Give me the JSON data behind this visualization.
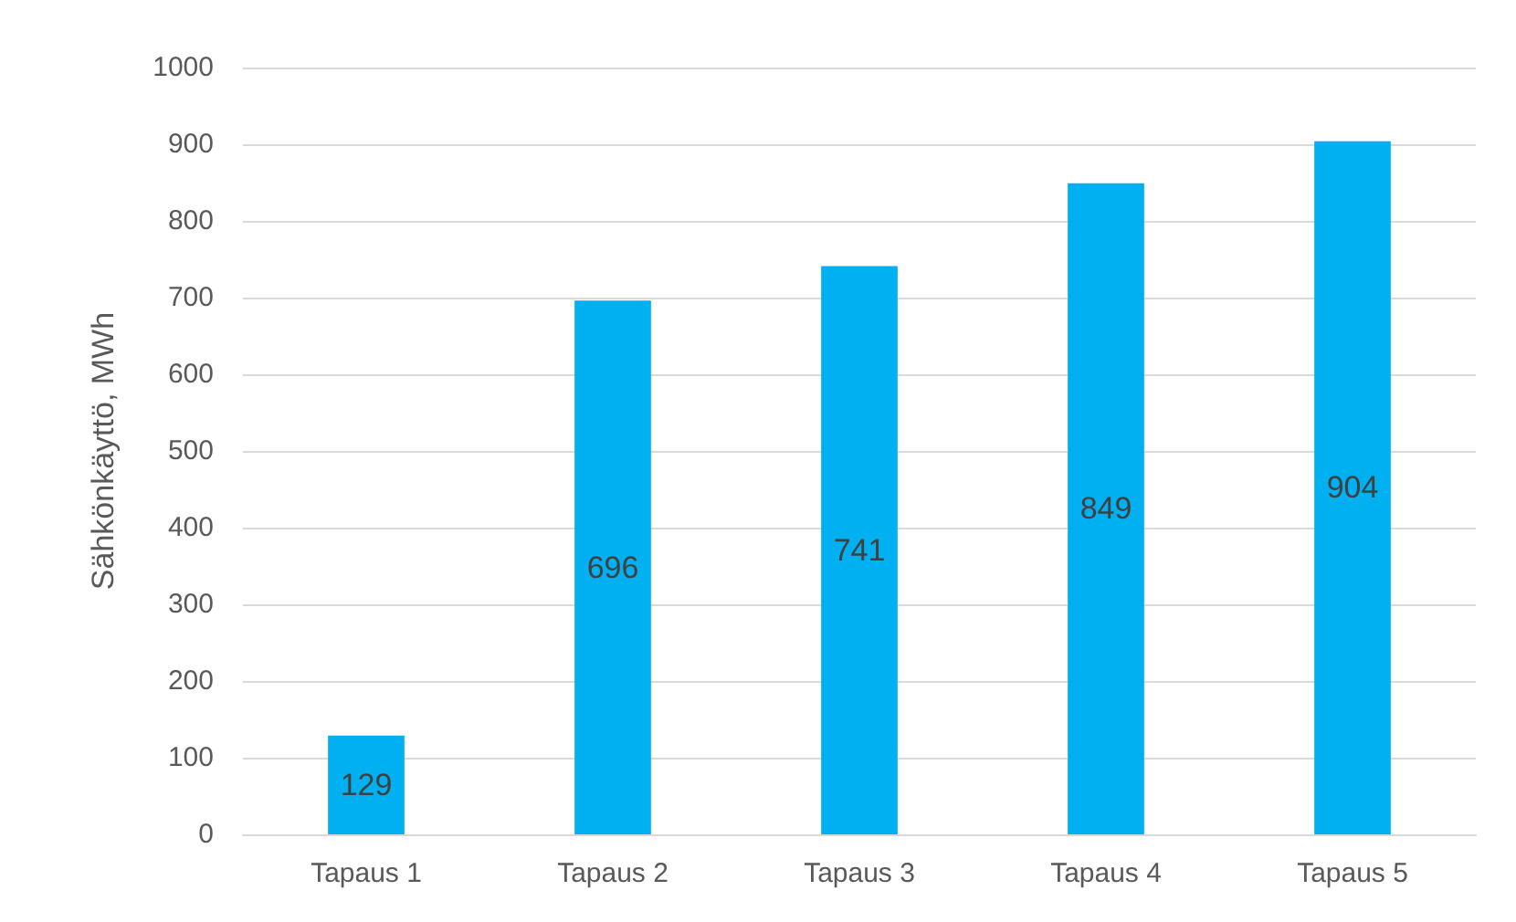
{
  "chart_data": {
    "type": "bar",
    "ylabel": "Sähkönkäyttö, MWh",
    "categories": [
      "Tapaus 1",
      "Tapaus 2",
      "Tapaus 3",
      "Tapaus 4",
      "Tapaus 5"
    ],
    "values": [
      129,
      696,
      741,
      849,
      904
    ],
    "color": "#00b0f0",
    "ylim": [
      0,
      1000
    ],
    "yticks": [
      0,
      100,
      200,
      300,
      400,
      500,
      600,
      700,
      800,
      900,
      1000
    ],
    "grid": "y",
    "data_labels": true
  }
}
